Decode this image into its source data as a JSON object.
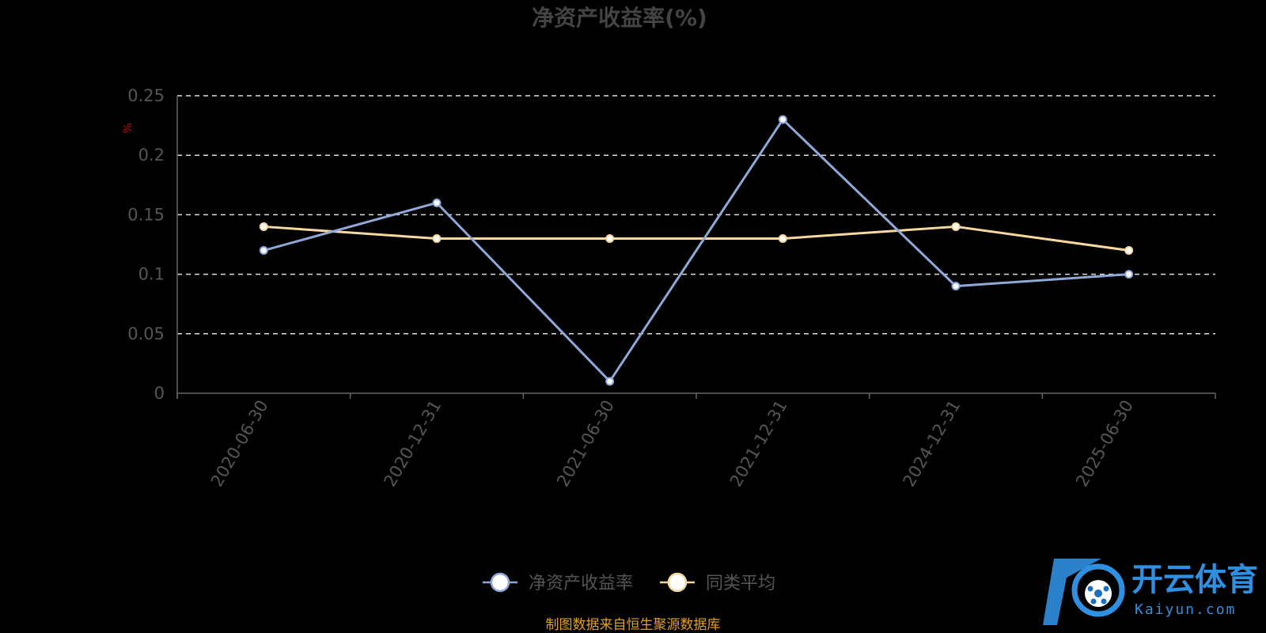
{
  "chart_data": {
    "type": "line",
    "title": "净资产收益率(%)",
    "yunit": "%",
    "categories": [
      "2020-06-30",
      "2020-12-31",
      "2021-06-30",
      "2021-12-31",
      "2024-12-31",
      "2025-06-30"
    ],
    "ylim": [
      0,
      0.25
    ],
    "yticks": [
      0,
      0.05,
      0.1,
      0.15,
      0.2,
      0.25
    ],
    "ytick_labels": [
      "0",
      "0.05",
      "0.1",
      "0.15",
      "0.2",
      "0.25"
    ],
    "grid": true,
    "legend_position": "bottom-center",
    "series": [
      {
        "name": "净资产收益率",
        "color": "#8fa8d8",
        "values": [
          0.12,
          0.16,
          0.01,
          0.23,
          0.09,
          0.1
        ]
      },
      {
        "name": "同类平均",
        "color": "#f5d9a0",
        "values": [
          0.14,
          0.13,
          0.13,
          0.13,
          0.14,
          0.12
        ]
      }
    ]
  },
  "source_note": "制图数据来自恒生聚源数据库",
  "watermark": {
    "cn": "开云体育",
    "en": "Kaiyun.com",
    "color": "#2f8fe0"
  }
}
